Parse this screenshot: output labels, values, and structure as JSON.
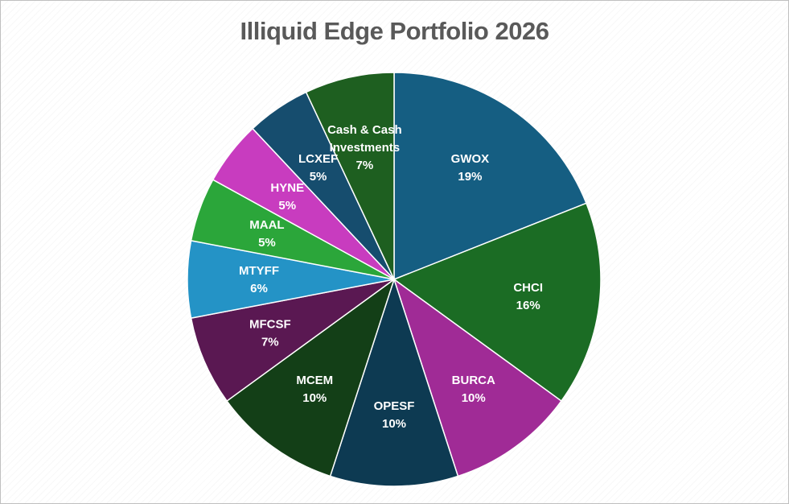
{
  "chart_data": {
    "type": "pie",
    "title": "Illiquid Edge Portfolio 2026",
    "slices": [
      {
        "label": "GWOX",
        "value": 19,
        "value_label": "19%",
        "color": "#155e82"
      },
      {
        "label": "CHCI",
        "value": 16,
        "value_label": "16%",
        "color": "#1b6c24"
      },
      {
        "label": "BURCA",
        "value": 10,
        "value_label": "10%",
        "color": "#a02b96"
      },
      {
        "label": "OPESF",
        "value": 10,
        "value_label": "10%",
        "color": "#0d3a52"
      },
      {
        "label": "MCEM",
        "value": 10,
        "value_label": "10%",
        "color": "#133f17"
      },
      {
        "label": "MFCSF",
        "value": 7,
        "value_label": "7%",
        "color": "#5a1852"
      },
      {
        "label": "MTYFF",
        "value": 6,
        "value_label": "6%",
        "color": "#2493c6"
      },
      {
        "label": "MAAL",
        "value": 5,
        "value_label": "5%",
        "color": "#2ba63a"
      },
      {
        "label": "HYNE",
        "value": 5,
        "value_label": "5%",
        "color": "#c83cbf"
      },
      {
        "label": "LCXEF",
        "value": 5,
        "value_label": "5%",
        "color": "#164d6e"
      },
      {
        "label": "Cash & Cash Investments",
        "label_lines": [
          "Cash & Cash",
          "Investments"
        ],
        "value": 7,
        "value_label": "7%",
        "color": "#1e5f20"
      }
    ],
    "start_angle": "12 o'clock",
    "direction": "clockwise",
    "legend": "none",
    "data_labels": "inside"
  }
}
